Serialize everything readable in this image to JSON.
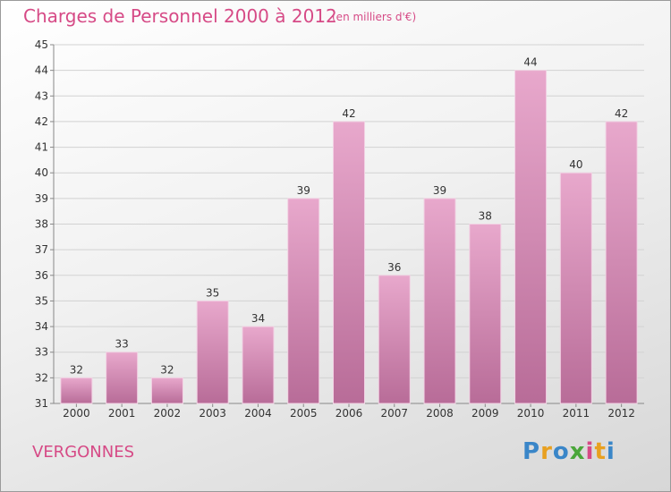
{
  "title": "Charges de Personnel 2000 à 2012",
  "subtitle": "(en milliers d'€)",
  "commune": "VERGONNES",
  "logo": {
    "letters": [
      "P",
      "r",
      "o",
      "x",
      "i",
      "t",
      "i"
    ],
    "colors": [
      "#3a86c8",
      "#e8a020",
      "#3a86c8",
      "#4aa63a",
      "#d64a86",
      "#e8a020",
      "#3a86c8"
    ]
  },
  "colors": {
    "bar": "#d890b8",
    "title": "#d64a86"
  },
  "chart_data": {
    "type": "bar",
    "categories": [
      "2000",
      "2001",
      "2002",
      "2003",
      "2004",
      "2005",
      "2006",
      "2007",
      "2008",
      "2009",
      "2010",
      "2011",
      "2012"
    ],
    "values": [
      32,
      33,
      32,
      35,
      34,
      39,
      42,
      36,
      39,
      38,
      44,
      40,
      42
    ],
    "data_labels": [
      "32",
      "33",
      "32",
      "35",
      "34",
      "39",
      "42",
      "36",
      "39",
      "38",
      "44",
      "40",
      "42"
    ],
    "ylim": [
      31,
      45
    ],
    "yticks": [
      "31",
      "32",
      "33",
      "34",
      "35",
      "36",
      "37",
      "38",
      "39",
      "40",
      "41",
      "42",
      "43",
      "44",
      "45"
    ],
    "grid": true,
    "title": "Charges de Personnel 2000 à 2012",
    "xlabel": "",
    "ylabel": ""
  }
}
